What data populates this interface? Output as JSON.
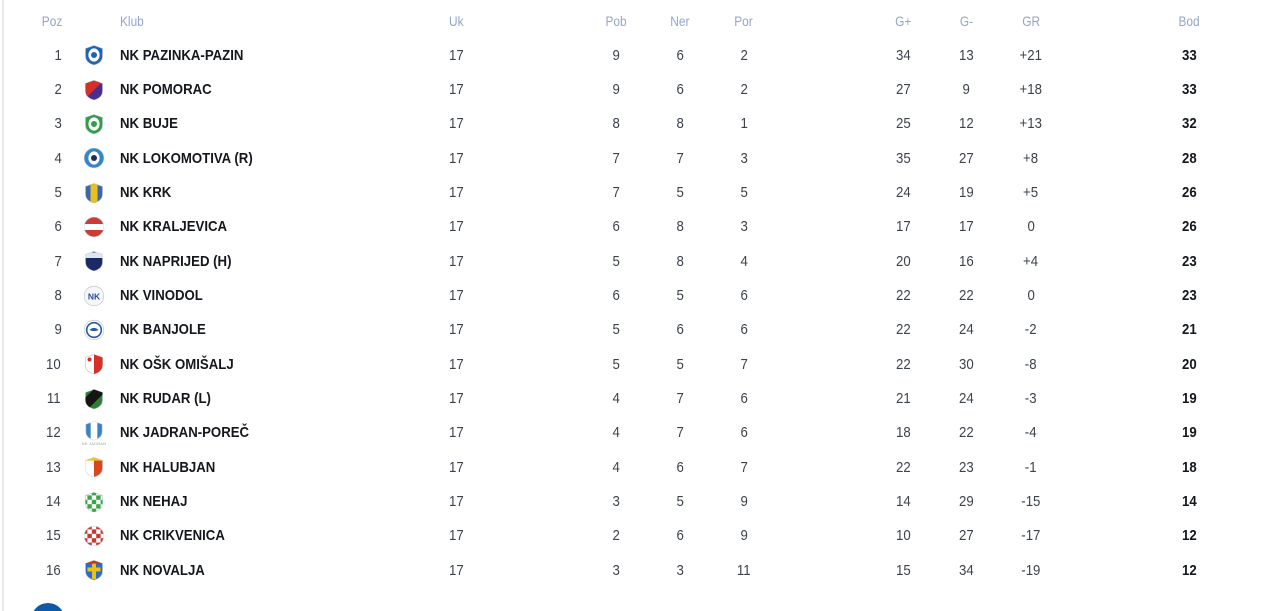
{
  "table": {
    "headers": {
      "poz": "Poz",
      "klub": "Klub",
      "uk": "Uk",
      "pob": "Pob",
      "ner": "Ner",
      "por": "Por",
      "gp": "G+",
      "gm": "G-",
      "gr": "GR",
      "bod": "Bod"
    },
    "header_text_color": "#93a5c8",
    "rows": [
      {
        "poz": "1",
        "klub": "NK PAZINKA-PAZIN",
        "uk": "17",
        "pob": "9",
        "ner": "6",
        "por": "2",
        "gp": "34",
        "gm": "13",
        "gr": "+21",
        "bod": "33",
        "badge": {
          "shape": "shield",
          "base": "#1f63b5",
          "accent": "#ffffff",
          "style": "core",
          "core": "#1f63b5"
        }
      },
      {
        "poz": "2",
        "klub": "NK POMORAC",
        "uk": "17",
        "pob": "9",
        "ner": "6",
        "por": "2",
        "gp": "27",
        "gm": "9",
        "gr": "+18",
        "bod": "33",
        "badge": {
          "shape": "shield",
          "base": "#4a2d8f",
          "accent": "#d63026",
          "style": "diagonal"
        }
      },
      {
        "poz": "3",
        "klub": "NK BUJE",
        "uk": "17",
        "pob": "8",
        "ner": "8",
        "por": "1",
        "gp": "25",
        "gm": "12",
        "gr": "+13",
        "bod": "32",
        "badge": {
          "shape": "shield",
          "base": "#2f9e49",
          "accent": "#ffffff",
          "style": "core",
          "core": "#2f9e49"
        }
      },
      {
        "poz": "4",
        "klub": "NK LOKOMOTIVA (R)",
        "uk": "17",
        "pob": "7",
        "ner": "7",
        "por": "3",
        "gp": "35",
        "gm": "27",
        "gr": "+8",
        "bod": "28",
        "badge": {
          "shape": "circle",
          "base": "#2f86c9",
          "accent": "#ffffff",
          "style": "core",
          "core": "#1b2d5e"
        }
      },
      {
        "poz": "5",
        "klub": "NK KRK",
        "uk": "17",
        "pob": "7",
        "ner": "5",
        "por": "5",
        "gp": "24",
        "gm": "19",
        "gr": "+5",
        "bod": "26",
        "badge": {
          "shape": "shield",
          "base": "#3a66ad",
          "accent": "#e7c11f",
          "style": "vstripe"
        }
      },
      {
        "poz": "6",
        "klub": "NK KRALJEVICA",
        "uk": "17",
        "pob": "6",
        "ner": "8",
        "por": "3",
        "gp": "17",
        "gm": "17",
        "gr": "0",
        "bod": "26",
        "badge": {
          "shape": "circle",
          "base": "#d03a35",
          "accent": "#ffffff",
          "style": "band"
        }
      },
      {
        "poz": "7",
        "klub": "NK NAPRIJED (H)",
        "uk": "17",
        "pob": "5",
        "ner": "8",
        "por": "4",
        "gp": "20",
        "gm": "16",
        "gr": "+4",
        "bod": "23",
        "badge": {
          "shape": "shield",
          "base": "#1b2a66",
          "accent": "#dfe6ef",
          "style": "band-top"
        }
      },
      {
        "poz": "8",
        "klub": "NK VINODOL",
        "uk": "17",
        "pob": "6",
        "ner": "5",
        "por": "6",
        "gp": "22",
        "gm": "22",
        "gr": "0",
        "bod": "23",
        "badge": {
          "shape": "circle",
          "base": "#f4f6fa",
          "accent": "#2a4a9e",
          "style": "letters",
          "text": "NK"
        }
      },
      {
        "poz": "9",
        "klub": "NK BANJOLE",
        "uk": "17",
        "pob": "5",
        "ner": "6",
        "por": "6",
        "gp": "22",
        "gm": "24",
        "gr": "-2",
        "bod": "21",
        "badge": {
          "shape": "circle",
          "base": "#ffffff",
          "accent": "#2a5a9e",
          "style": "ring"
        }
      },
      {
        "poz": "10",
        "klub": "NK OŠK OMIŠALJ",
        "uk": "17",
        "pob": "5",
        "ner": "5",
        "por": "7",
        "gp": "22",
        "gm": "30",
        "gr": "-8",
        "bod": "20",
        "badge": {
          "shape": "shield",
          "base": "#ffffff",
          "accent": "#d63026",
          "style": "half-right"
        }
      },
      {
        "poz": "11",
        "klub": "NK RUDAR (L)",
        "uk": "17",
        "pob": "4",
        "ner": "7",
        "por": "6",
        "gp": "21",
        "gm": "24",
        "gr": "-3",
        "bod": "19",
        "badge": {
          "shape": "shield",
          "base": "#2e7d32",
          "accent": "#151515",
          "style": "dband"
        }
      },
      {
        "poz": "12",
        "klub": "NK JADRAN-POREČ",
        "uk": "17",
        "pob": "4",
        "ner": "7",
        "por": "6",
        "gp": "18",
        "gm": "22",
        "gr": "-4",
        "bod": "19",
        "badge": {
          "shape": "shield",
          "base": "#3b82c4",
          "accent": "#ffffff",
          "style": "vstripe",
          "caption": "NK JADRAN"
        }
      },
      {
        "poz": "13",
        "klub": "NK HALUBJAN",
        "uk": "17",
        "pob": "4",
        "ner": "6",
        "por": "7",
        "gp": "22",
        "gm": "23",
        "gr": "-1",
        "bod": "18",
        "badge": {
          "shape": "shield",
          "base": "#d8471d",
          "accent": "#ffffff",
          "style": "half-left",
          "top": "#e9c42c"
        }
      },
      {
        "poz": "14",
        "klub": "NK NEHAJ",
        "uk": "17",
        "pob": "3",
        "ner": "5",
        "por": "9",
        "gp": "14",
        "gm": "29",
        "gr": "-15",
        "bod": "14",
        "badge": {
          "shape": "shield",
          "base": "#ffffff",
          "accent": "#3aa54a",
          "style": "checker"
        }
      },
      {
        "poz": "15",
        "klub": "NK CRIKVENICA",
        "uk": "17",
        "pob": "2",
        "ner": "6",
        "por": "9",
        "gp": "10",
        "gm": "27",
        "gr": "-17",
        "bod": "12",
        "badge": {
          "shape": "circle",
          "base": "#c43a30",
          "accent": "#ffffff",
          "style": "checker"
        }
      },
      {
        "poz": "16",
        "klub": "NK NOVALJA",
        "uk": "17",
        "pob": "3",
        "ner": "3",
        "por": "11",
        "gp": "15",
        "gm": "34",
        "gr": "-19",
        "bod": "12",
        "badge": {
          "shape": "shield",
          "base": "#2f6ac4",
          "accent": "#e7c11f",
          "style": "cross",
          "top": "#c0392b"
        }
      }
    ]
  },
  "footer": {
    "partial_badge_color": "#0e5aa7"
  }
}
